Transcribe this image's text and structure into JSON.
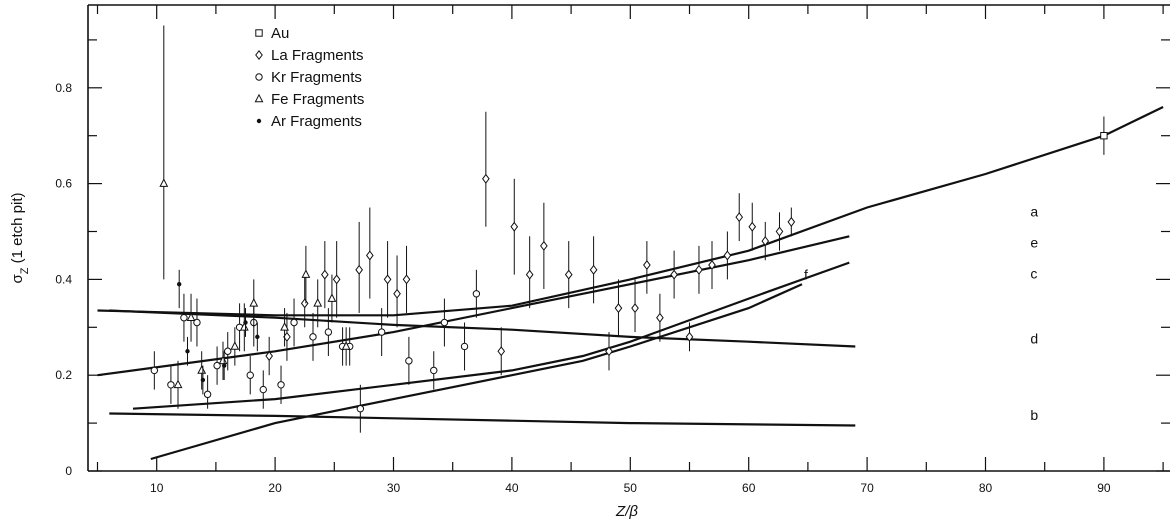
{
  "chart_data": {
    "type": "scatter",
    "xlabel": "Z/β",
    "ylabel_main": "σ",
    "ylabel_sub": "Z",
    "ylabel_rest": " (1 etch pit)",
    "xlim": [
      5,
      95
    ],
    "ylim": [
      0,
      0.92
    ],
    "xticks": [
      10,
      20,
      30,
      40,
      50,
      60,
      70,
      80,
      90
    ],
    "yticks": [
      0,
      0.2,
      0.4,
      0.6,
      0.8
    ],
    "ytick_labels": [
      "0",
      "0.2",
      "0.4",
      "0.6",
      "0.8"
    ],
    "legend_position": "top-left",
    "series": [
      {
        "name": "Au",
        "marker": "square",
        "points": [
          {
            "x": 90,
            "y": 0.7,
            "lo": 0.66,
            "hi": 0.74
          }
        ]
      },
      {
        "name": "La Fragments",
        "marker": "diamond",
        "points": [
          {
            "x": 22.5,
            "y": 0.35,
            "lo": 0.3,
            "hi": 0.41
          },
          {
            "x": 24.2,
            "y": 0.41,
            "lo": 0.34,
            "hi": 0.48
          },
          {
            "x": 25.2,
            "y": 0.4,
            "lo": 0.32,
            "hi": 0.48
          },
          {
            "x": 27.1,
            "y": 0.42,
            "lo": 0.33,
            "hi": 0.52
          },
          {
            "x": 28.0,
            "y": 0.45,
            "lo": 0.36,
            "hi": 0.55
          },
          {
            "x": 29.5,
            "y": 0.4,
            "lo": 0.32,
            "hi": 0.48
          },
          {
            "x": 30.3,
            "y": 0.37,
            "lo": 0.3,
            "hi": 0.45
          },
          {
            "x": 31.1,
            "y": 0.4,
            "lo": 0.33,
            "hi": 0.47
          },
          {
            "x": 37.8,
            "y": 0.61,
            "lo": 0.51,
            "hi": 0.75
          },
          {
            "x": 40.2,
            "y": 0.51,
            "lo": 0.41,
            "hi": 0.61
          },
          {
            "x": 41.5,
            "y": 0.41,
            "lo": 0.34,
            "hi": 0.49
          },
          {
            "x": 42.7,
            "y": 0.47,
            "lo": 0.38,
            "hi": 0.56
          },
          {
            "x": 44.8,
            "y": 0.41,
            "lo": 0.34,
            "hi": 0.48
          },
          {
            "x": 46.9,
            "y": 0.42,
            "lo": 0.35,
            "hi": 0.49
          },
          {
            "x": 49.0,
            "y": 0.34,
            "lo": 0.28,
            "hi": 0.4
          },
          {
            "x": 50.4,
            "y": 0.34,
            "lo": 0.29,
            "hi": 0.4
          },
          {
            "x": 51.4,
            "y": 0.43,
            "lo": 0.37,
            "hi": 0.48
          },
          {
            "x": 53.7,
            "y": 0.41,
            "lo": 0.36,
            "hi": 0.46
          },
          {
            "x": 55.8,
            "y": 0.42,
            "lo": 0.37,
            "hi": 0.47
          },
          {
            "x": 56.9,
            "y": 0.43,
            "lo": 0.38,
            "hi": 0.48
          },
          {
            "x": 58.2,
            "y": 0.45,
            "lo": 0.4,
            "hi": 0.5
          },
          {
            "x": 59.2,
            "y": 0.53,
            "lo": 0.48,
            "hi": 0.58
          },
          {
            "x": 60.3,
            "y": 0.51,
            "lo": 0.46,
            "hi": 0.56
          },
          {
            "x": 61.4,
            "y": 0.48,
            "lo": 0.44,
            "hi": 0.52
          },
          {
            "x": 62.6,
            "y": 0.5,
            "lo": 0.46,
            "hi": 0.54
          },
          {
            "x": 63.6,
            "y": 0.52,
            "lo": 0.49,
            "hi": 0.55
          },
          {
            "x": 52.5,
            "y": 0.32,
            "lo": 0.27,
            "hi": 0.37
          },
          {
            "x": 55.0,
            "y": 0.28,
            "lo": 0.25,
            "hi": 0.31
          },
          {
            "x": 48.2,
            "y": 0.25,
            "lo": 0.21,
            "hi": 0.29
          },
          {
            "x": 39.1,
            "y": 0.25,
            "lo": 0.2,
            "hi": 0.3
          },
          {
            "x": 21.0,
            "y": 0.28,
            "lo": 0.23,
            "hi": 0.33
          },
          {
            "x": 19.5,
            "y": 0.24,
            "lo": 0.2,
            "hi": 0.28
          }
        ]
      },
      {
        "name": "Kr Fragments",
        "marker": "circle",
        "points": [
          {
            "x": 9.8,
            "y": 0.21,
            "lo": 0.17,
            "hi": 0.25
          },
          {
            "x": 11.2,
            "y": 0.18,
            "lo": 0.14,
            "hi": 0.22
          },
          {
            "x": 12.3,
            "y": 0.32,
            "lo": 0.27,
            "hi": 0.37
          },
          {
            "x": 13.4,
            "y": 0.31,
            "lo": 0.26,
            "hi": 0.36
          },
          {
            "x": 14.3,
            "y": 0.16,
            "lo": 0.13,
            "hi": 0.2
          },
          {
            "x": 15.1,
            "y": 0.22,
            "lo": 0.18,
            "hi": 0.26
          },
          {
            "x": 16.0,
            "y": 0.25,
            "lo": 0.21,
            "hi": 0.29
          },
          {
            "x": 17.0,
            "y": 0.3,
            "lo": 0.25,
            "hi": 0.35
          },
          {
            "x": 18.2,
            "y": 0.31,
            "lo": 0.26,
            "hi": 0.36
          },
          {
            "x": 19.0,
            "y": 0.17,
            "lo": 0.13,
            "hi": 0.21
          },
          {
            "x": 20.5,
            "y": 0.18,
            "lo": 0.14,
            "hi": 0.22
          },
          {
            "x": 21.6,
            "y": 0.31,
            "lo": 0.26,
            "hi": 0.36
          },
          {
            "x": 23.2,
            "y": 0.28,
            "lo": 0.23,
            "hi": 0.33
          },
          {
            "x": 24.5,
            "y": 0.29,
            "lo": 0.24,
            "hi": 0.34
          },
          {
            "x": 26.3,
            "y": 0.26,
            "lo": 0.22,
            "hi": 0.3
          },
          {
            "x": 27.2,
            "y": 0.13,
            "lo": 0.08,
            "hi": 0.18
          },
          {
            "x": 29.0,
            "y": 0.29,
            "lo": 0.24,
            "hi": 0.34
          },
          {
            "x": 31.3,
            "y": 0.23,
            "lo": 0.18,
            "hi": 0.28
          },
          {
            "x": 33.4,
            "y": 0.21,
            "lo": 0.17,
            "hi": 0.25
          },
          {
            "x": 34.3,
            "y": 0.31,
            "lo": 0.26,
            "hi": 0.36
          },
          {
            "x": 36.0,
            "y": 0.26,
            "lo": 0.21,
            "hi": 0.31
          },
          {
            "x": 37.0,
            "y": 0.37,
            "lo": 0.32,
            "hi": 0.42
          },
          {
            "x": 17.9,
            "y": 0.2,
            "lo": 0.16,
            "hi": 0.24
          },
          {
            "x": 25.7,
            "y": 0.26,
            "lo": 0.22,
            "hi": 0.3
          }
        ]
      },
      {
        "name": "Fe Fragments",
        "marker": "triangle",
        "points": [
          {
            "x": 10.6,
            "y": 0.6,
            "lo": 0.4,
            "hi": 0.93
          },
          {
            "x": 11.8,
            "y": 0.18,
            "lo": 0.13,
            "hi": 0.23
          },
          {
            "x": 12.9,
            "y": 0.32,
            "lo": 0.27,
            "hi": 0.37
          },
          {
            "x": 13.8,
            "y": 0.21,
            "lo": 0.17,
            "hi": 0.25
          },
          {
            "x": 15.6,
            "y": 0.23,
            "lo": 0.19,
            "hi": 0.27
          },
          {
            "x": 16.6,
            "y": 0.26,
            "lo": 0.22,
            "hi": 0.3
          },
          {
            "x": 17.4,
            "y": 0.3,
            "lo": 0.25,
            "hi": 0.35
          },
          {
            "x": 18.2,
            "y": 0.35,
            "lo": 0.3,
            "hi": 0.4
          },
          {
            "x": 20.8,
            "y": 0.3,
            "lo": 0.26,
            "hi": 0.34
          },
          {
            "x": 22.6,
            "y": 0.41,
            "lo": 0.35,
            "hi": 0.47
          },
          {
            "x": 23.6,
            "y": 0.35,
            "lo": 0.3,
            "hi": 0.4
          },
          {
            "x": 24.8,
            "y": 0.36,
            "lo": 0.31,
            "hi": 0.41
          },
          {
            "x": 26.0,
            "y": 0.26,
            "lo": 0.22,
            "hi": 0.3
          }
        ]
      },
      {
        "name": "Ar Fragments",
        "marker": "dot",
        "points": [
          {
            "x": 11.9,
            "y": 0.39,
            "lo": 0.34,
            "hi": 0.42
          },
          {
            "x": 12.6,
            "y": 0.25,
            "lo": 0.22,
            "hi": 0.28
          },
          {
            "x": 13.9,
            "y": 0.19,
            "lo": 0.16,
            "hi": 0.22
          },
          {
            "x": 15.7,
            "y": 0.22,
            "lo": 0.19,
            "hi": 0.25
          },
          {
            "x": 17.5,
            "y": 0.31,
            "lo": 0.28,
            "hi": 0.34
          },
          {
            "x": 18.5,
            "y": 0.28,
            "lo": 0.25,
            "hi": 0.31
          }
        ]
      }
    ],
    "curves": [
      {
        "label": "a",
        "points": [
          [
            5,
            0.335
          ],
          [
            20,
            0.325
          ],
          [
            30,
            0.325
          ],
          [
            40,
            0.345
          ],
          [
            50,
            0.4
          ],
          [
            60,
            0.46
          ],
          [
            70,
            0.55
          ],
          [
            80,
            0.62
          ],
          [
            90,
            0.7
          ],
          [
            95,
            0.76
          ]
        ]
      },
      {
        "label": "e",
        "points": [
          [
            5,
            0.2
          ],
          [
            20,
            0.25
          ],
          [
            30,
            0.29
          ],
          [
            40,
            0.34
          ],
          [
            50,
            0.39
          ],
          [
            60,
            0.44
          ],
          [
            68.5,
            0.49
          ]
        ]
      },
      {
        "label": "c",
        "points": [
          [
            8,
            0.13
          ],
          [
            20,
            0.15
          ],
          [
            30,
            0.18
          ],
          [
            40,
            0.21
          ],
          [
            46,
            0.24
          ],
          [
            50,
            0.27
          ],
          [
            60,
            0.36
          ],
          [
            68.5,
            0.435
          ]
        ]
      },
      {
        "label": "f",
        "points": [
          [
            9.5,
            0.025
          ],
          [
            20,
            0.1
          ],
          [
            30,
            0.15
          ],
          [
            40,
            0.2
          ],
          [
            46,
            0.23
          ],
          [
            50,
            0.26
          ],
          [
            60,
            0.34
          ],
          [
            64.5,
            0.39
          ]
        ]
      },
      {
        "label": "d",
        "points": [
          [
            6,
            0.335
          ],
          [
            20,
            0.32
          ],
          [
            30,
            0.305
          ],
          [
            40,
            0.295
          ],
          [
            50,
            0.28
          ],
          [
            60,
            0.27
          ],
          [
            69,
            0.26
          ]
        ]
      },
      {
        "label": "b",
        "points": [
          [
            6,
            0.12
          ],
          [
            20,
            0.115
          ],
          [
            30,
            0.11
          ],
          [
            40,
            0.105
          ],
          [
            50,
            0.1
          ],
          [
            69,
            0.095
          ]
        ]
      }
    ]
  }
}
